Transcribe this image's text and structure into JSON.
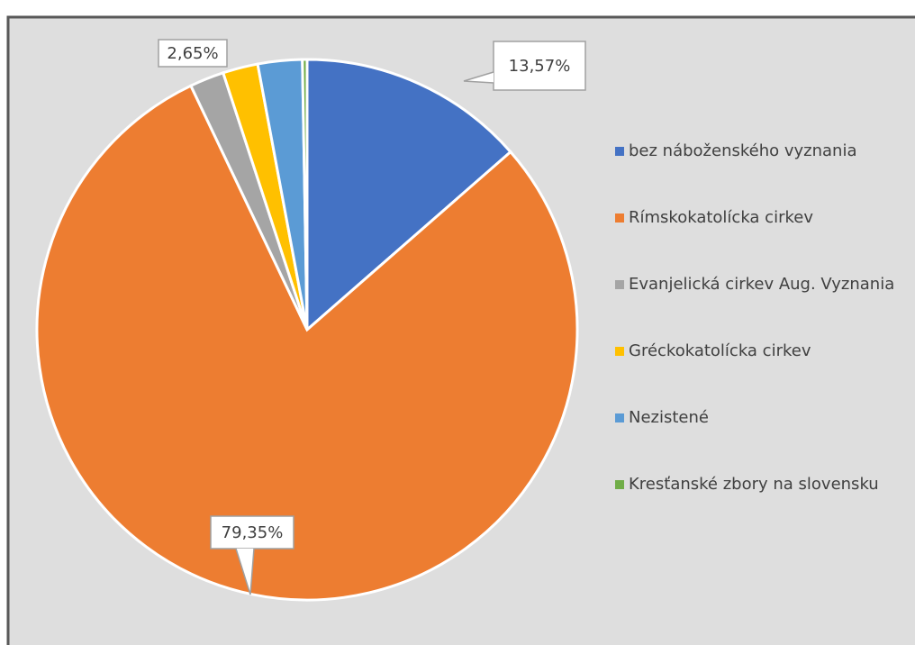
{
  "chart_data": {
    "type": "pie",
    "categories": [
      "bez náboženského vyznania",
      "Rímskokatolícka cirkev",
      "Evanjelická cirkev Aug. Vyznania",
      "Gréckokatolícka cirkev",
      "Nezistené",
      "Kresťanské zbory na slovensku"
    ],
    "values": [
      13.57,
      79.35,
      2.05,
      2.1,
      2.65,
      0.28
    ],
    "value_labels": [
      "13,57%",
      "79,35%",
      null,
      null,
      "2,65%",
      null
    ],
    "colors": [
      "#4472c4",
      "#ed7d31",
      "#a5a5a5",
      "#ffc000",
      "#5b9bd5",
      "#70ad47"
    ],
    "legend": "right"
  }
}
